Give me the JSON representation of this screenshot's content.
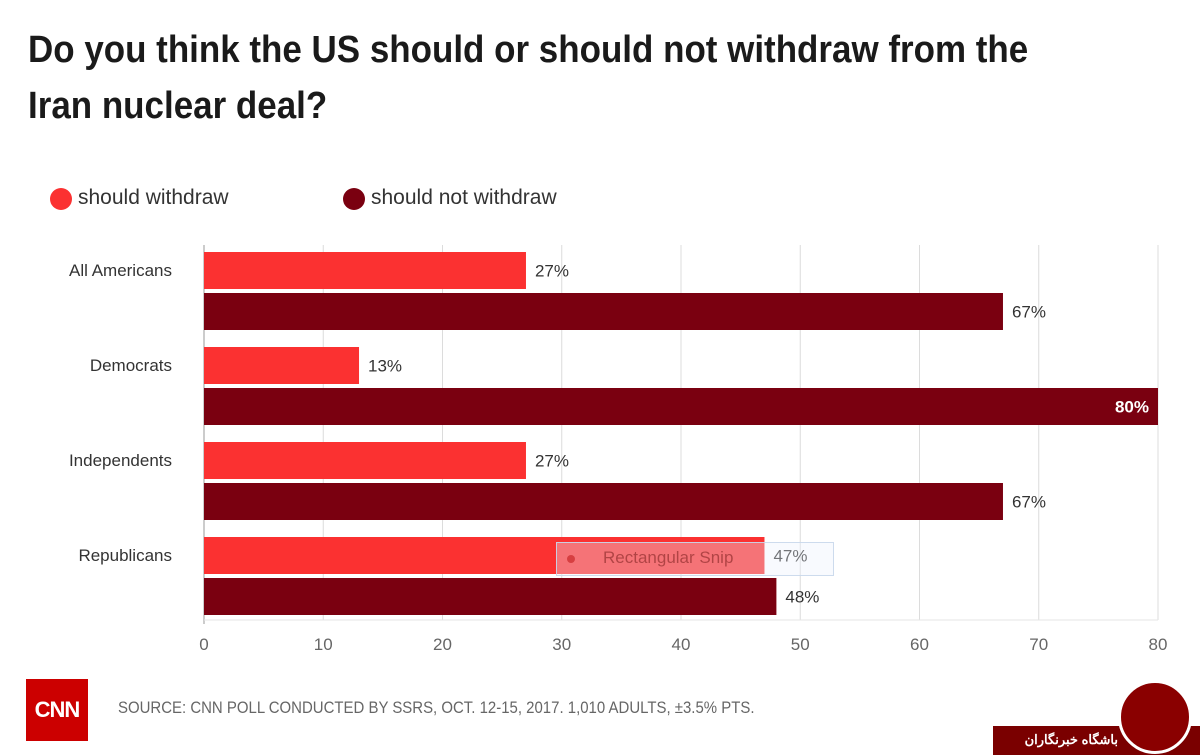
{
  "chart_data": {
    "type": "bar",
    "orientation": "horizontal",
    "title": "Do you think the US should or should not withdraw from the Iran nuclear deal?",
    "categories": [
      "All Americans",
      "Democrats",
      "Independents",
      "Republicans"
    ],
    "series": [
      {
        "name": "should withdraw",
        "color": "#fb3131",
        "values": [
          27,
          13,
          27,
          47
        ],
        "labels": [
          "27%",
          "13%",
          "27%",
          "47%"
        ]
      },
      {
        "name": "should not withdraw",
        "color": "#7a0010",
        "values": [
          67,
          80,
          67,
          48
        ],
        "labels": [
          "67%",
          "80%",
          "67%",
          "48%"
        ]
      }
    ],
    "xlim": [
      0,
      80
    ],
    "xticks": [
      "0",
      "10",
      "20",
      "30",
      "40",
      "50",
      "60",
      "70",
      "80"
    ],
    "grid": true,
    "legend_position": "top-left"
  },
  "legend": {
    "items": [
      {
        "label": "should withdraw",
        "color": "#fb3131"
      },
      {
        "label": "should not withdraw",
        "color": "#7a0010"
      }
    ]
  },
  "footer": {
    "logo_text": "CNN",
    "source": "SOURCE: CNN POLL CONDUCTED BY SSRS, OCT. 12-15, 2017. 1,010 ADULTS, ±3.5% PTS."
  },
  "overlay": {
    "snip_label": "Rectangular Snip",
    "watermark_text": "باشگاه خبرنگاران"
  }
}
